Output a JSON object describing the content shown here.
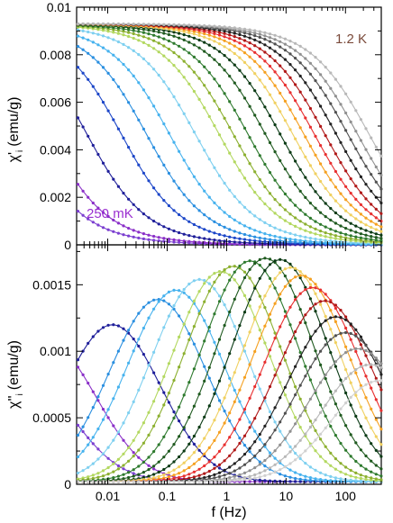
{
  "chart_data": [
    {
      "type": "line",
      "panel": "top",
      "ylabel_main": "χ'",
      "ylabel_sub": "i",
      "ylabel_unit": "(emu/g)",
      "xscale": "log",
      "xlim": [
        0.003,
        400
      ],
      "ylim": [
        0,
        0.01
      ],
      "yticks": [
        0,
        0.002,
        0.004,
        0.006,
        0.008,
        0.01
      ],
      "ytick_labels": [
        "0",
        "0.002",
        "0.004",
        "0.006",
        "0.008",
        "0.01"
      ],
      "grid": false,
      "annotations": [
        {
          "text": "1.2 K",
          "color": "#7a4a3a"
        },
        {
          "text": "250 mK",
          "color": "#9a2fd0"
        }
      ],
      "series_count": 20,
      "series": [
        {
          "f_half_hz": 0.0004,
          "color": "#7b3fd0"
        },
        {
          "f_half_hz": 0.001,
          "color": "#8a2fc8"
        },
        {
          "f_half_hz": 0.0045,
          "color": "#1f1f9a"
        },
        {
          "f_half_hz": 0.017,
          "color": "#1c46c8"
        },
        {
          "f_half_hz": 0.045,
          "color": "#2a8fe0"
        },
        {
          "f_half_hz": 0.11,
          "color": "#46b2ee"
        },
        {
          "f_half_hz": 0.3,
          "color": "#7fd0f0"
        },
        {
          "f_half_hz": 0.75,
          "color": "#b3d860"
        },
        {
          "f_half_hz": 1.3,
          "color": "#8cb030"
        },
        {
          "f_half_hz": 2.3,
          "color": "#2e7a2e"
        },
        {
          "f_half_hz": 4.5,
          "color": "#1f5a1f"
        },
        {
          "f_half_hz": 8,
          "color": "#0a3a14"
        },
        {
          "f_half_hz": 13,
          "color": "#f0d060"
        },
        {
          "f_half_hz": 20,
          "color": "#f5a020"
        },
        {
          "f_half_hz": 30,
          "color": "#e83030"
        },
        {
          "f_half_hz": 45,
          "color": "#b01818"
        },
        {
          "f_half_hz": 70,
          "color": "#202020"
        },
        {
          "f_half_hz": 110,
          "color": "#505050"
        },
        {
          "f_half_hz": 160,
          "color": "#909090"
        },
        {
          "f_half_hz": 250,
          "color": "#b8b8b8"
        }
      ],
      "chi0": 0.0093
    },
    {
      "type": "line",
      "panel": "bottom",
      "xlabel": "f (Hz)",
      "ylabel_main": "χ''",
      "ylabel_sub": "i",
      "ylabel_unit": "(emu/g)",
      "xscale": "log",
      "xlim": [
        0.003,
        400
      ],
      "xticks": [
        0.01,
        0.1,
        1,
        10,
        100
      ],
      "xtick_labels": [
        "0.01",
        "0.1",
        "1",
        "10",
        "100"
      ],
      "ylim": [
        0,
        0.0018
      ],
      "yticks": [
        0,
        0.0005,
        0.001,
        0.0015
      ],
      "ytick_labels": [
        "0",
        "0.0005",
        "0.001",
        "0.0015"
      ],
      "grid": false,
      "series": [
        {
          "peak_f_hz": 0.0004,
          "peak_value": 0.00078,
          "color": "#7b3fd0"
        },
        {
          "peak_f_hz": 0.001,
          "peak_value": 0.00104,
          "color": "#8a2fc8"
        },
        {
          "peak_f_hz": 0.012,
          "peak_value": 0.00118,
          "color": "#1f1f9a"
        },
        {
          "peak_f_hz": 0.07,
          "peak_value": 0.00137,
          "color": "#2a8fe0"
        },
        {
          "peak_f_hz": 0.14,
          "peak_value": 0.00144,
          "color": "#46b2ee"
        },
        {
          "peak_f_hz": 0.35,
          "peak_value": 0.00152,
          "color": "#7fd0f0"
        },
        {
          "peak_f_hz": 0.8,
          "peak_value": 0.00158,
          "color": "#b3d860"
        },
        {
          "peak_f_hz": 1.3,
          "peak_value": 0.00162,
          "color": "#8cb030"
        },
        {
          "peak_f_hz": 2.5,
          "peak_value": 0.00166,
          "color": "#2e7a2e"
        },
        {
          "peak_f_hz": 4.5,
          "peak_value": 0.00168,
          "color": "#1f5a1f"
        },
        {
          "peak_f_hz": 8,
          "peak_value": 0.00167,
          "color": "#0a3a14"
        },
        {
          "peak_f_hz": 12,
          "peak_value": 0.00161,
          "color": "#f0d060"
        },
        {
          "peak_f_hz": 18,
          "peak_value": 0.00155,
          "color": "#f5a020"
        },
        {
          "peak_f_hz": 28,
          "peak_value": 0.00146,
          "color": "#e83030"
        },
        {
          "peak_f_hz": 45,
          "peak_value": 0.00136,
          "color": "#b01818"
        },
        {
          "peak_f_hz": 70,
          "peak_value": 0.00124,
          "color": "#202020"
        },
        {
          "peak_f_hz": 100,
          "peak_value": 0.00112,
          "color": "#505050"
        },
        {
          "peak_f_hz": 160,
          "peak_value": 0.001,
          "color": "#909090"
        },
        {
          "peak_f_hz": 260,
          "peak_value": 0.00088,
          "color": "#b8b8b8"
        },
        {
          "peak_f_hz": 380,
          "peak_value": 0.00076,
          "color": "#d0d0d0"
        }
      ]
    }
  ]
}
